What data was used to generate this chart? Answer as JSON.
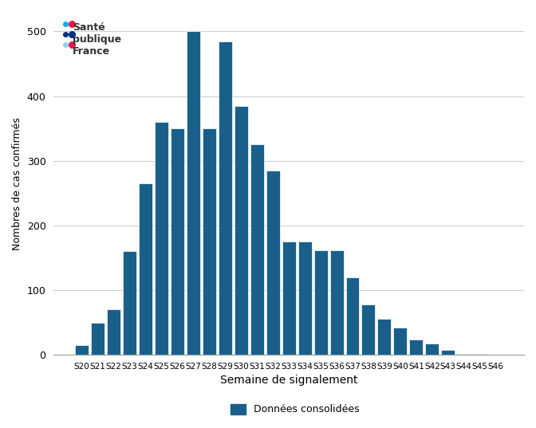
{
  "weeks": [
    "S20",
    "S21",
    "S22",
    "S23",
    "S24",
    "S25",
    "S26",
    "S27",
    "S28",
    "S29",
    "S30",
    "S31",
    "S32",
    "S33",
    "S34",
    "S35",
    "S36",
    "S37",
    "S38",
    "S39",
    "S40",
    "S41",
    "S42",
    "S43",
    "S44",
    "S45",
    "S46"
  ],
  "values": [
    15,
    50,
    70,
    160,
    265,
    360,
    350,
    500,
    350,
    485,
    385,
    325,
    285,
    175,
    175,
    162,
    162,
    120,
    78,
    55,
    42,
    23,
    18,
    8,
    2,
    1,
    0
  ],
  "bar_color": "#1a5f8a",
  "bar_edgecolor": "#ffffff",
  "ylabel": "Nombres de cas confirmés",
  "xlabel": "Semaine de signalement",
  "ylim": [
    0,
    530
  ],
  "yticks": [
    0,
    100,
    200,
    300,
    400,
    500
  ],
  "legend_label": "Données consolidées",
  "bg_color": "#ffffff",
  "grid_color": "#cccccc",
  "figsize": [
    6.72,
    5.37
  ],
  "dpi": 100
}
